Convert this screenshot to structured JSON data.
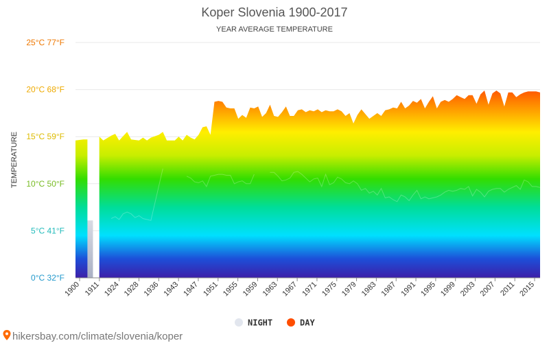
{
  "chart_data": {
    "type": "area",
    "title": "Koper Slovenia 1900-2017",
    "subtitle": "YEAR AVERAGE TEMPERATURE",
    "ylabel": "TEMPERATURE",
    "xlabel": "",
    "xlim": [
      1900,
      2017
    ],
    "ylim": [
      0,
      25
    ],
    "y_ticks": [
      {
        "value": 0,
        "label": "0°C 32°F",
        "color": "#2299cc"
      },
      {
        "value": 5,
        "label": "5°C 41°F",
        "color": "#22bbbb"
      },
      {
        "value": 10,
        "label": "10°C 50°F",
        "color": "#77bb22"
      },
      {
        "value": 15,
        "label": "15°C 59°F",
        "color": "#ddbb00"
      },
      {
        "value": 20,
        "label": "20°C 68°F",
        "color": "#eeaa00"
      },
      {
        "value": 25,
        "label": "25°C 77°F",
        "color": "#ee7700"
      }
    ],
    "x_ticks": [
      "1900",
      "1911",
      "1924",
      "1928",
      "1936",
      "1943",
      "1947",
      "1951",
      "1955",
      "1959",
      "1963",
      "1967",
      "1971",
      "1975",
      "1979",
      "1983",
      "1987",
      "1991",
      "1995",
      "1999",
      "2003",
      "2007",
      "2011",
      "2015"
    ],
    "legend": [
      {
        "label": "NIGHT",
        "color": "#e2e6ee"
      },
      {
        "label": "DAY",
        "color": "#ff4d00"
      }
    ],
    "legend_position": "bottom-center",
    "grid": true,
    "series": [
      {
        "name": "DAY",
        "points": [
          [
            1900,
            14.6
          ],
          [
            1902,
            14.7
          ],
          [
            1903,
            14.7
          ],
          [
            1905,
            0
          ],
          [
            1906,
            15.0
          ],
          [
            1907,
            14.6
          ],
          [
            1909,
            15.1
          ],
          [
            1910,
            15.3
          ],
          [
            1911,
            14.6
          ],
          [
            1913,
            15.5
          ],
          [
            1914,
            14.7
          ],
          [
            1916,
            14.6
          ],
          [
            1917,
            14.9
          ],
          [
            1918,
            14.6
          ],
          [
            1919,
            14.9
          ],
          [
            1921,
            15.2
          ],
          [
            1922,
            15.5
          ],
          [
            1923,
            14.6
          ],
          [
            1925,
            14.6
          ],
          [
            1926,
            15.0
          ],
          [
            1927,
            14.6
          ],
          [
            1928,
            15.2
          ],
          [
            1929,
            14.9
          ],
          [
            1930,
            14.7
          ],
          [
            1931,
            15.2
          ],
          [
            1932,
            16.0
          ],
          [
            1933,
            16.1
          ],
          [
            1934,
            15.2
          ],
          [
            1935,
            18.7
          ],
          [
            1936,
            18.8
          ],
          [
            1937,
            18.7
          ],
          [
            1938,
            18.1
          ],
          [
            1939,
            18.0
          ],
          [
            1940,
            18.0
          ],
          [
            1941,
            16.9
          ],
          [
            1942,
            17.3
          ],
          [
            1943,
            17.0
          ],
          [
            1944,
            18.1
          ],
          [
            1945,
            18.0
          ],
          [
            1946,
            18.2
          ],
          [
            1947,
            17.1
          ],
          [
            1948,
            17.5
          ],
          [
            1949,
            18.4
          ],
          [
            1950,
            17.2
          ],
          [
            1951,
            17.1
          ],
          [
            1952,
            17.6
          ],
          [
            1953,
            18.2
          ],
          [
            1954,
            17.2
          ],
          [
            1955,
            17.2
          ],
          [
            1956,
            17.8
          ],
          [
            1957,
            17.9
          ],
          [
            1958,
            17.6
          ],
          [
            1959,
            17.8
          ],
          [
            1960,
            17.7
          ],
          [
            1961,
            17.9
          ],
          [
            1962,
            17.6
          ],
          [
            1963,
            17.8
          ],
          [
            1964,
            17.7
          ],
          [
            1965,
            17.7
          ],
          [
            1966,
            17.9
          ],
          [
            1967,
            17.7
          ],
          [
            1968,
            17.2
          ],
          [
            1969,
            17.5
          ],
          [
            1970,
            16.4
          ],
          [
            1971,
            17.3
          ],
          [
            1972,
            17.9
          ],
          [
            1973,
            17.4
          ],
          [
            1974,
            16.9
          ],
          [
            1975,
            17.2
          ],
          [
            1976,
            17.5
          ],
          [
            1977,
            17.2
          ],
          [
            1978,
            17.8
          ],
          [
            1979,
            17.9
          ],
          [
            1980,
            18.1
          ],
          [
            1981,
            18.0
          ],
          [
            1982,
            18.7
          ],
          [
            1983,
            18.0
          ],
          [
            1984,
            18.3
          ],
          [
            1985,
            18.8
          ],
          [
            1986,
            18.6
          ],
          [
            1987,
            19.0
          ],
          [
            1988,
            18.0
          ],
          [
            1989,
            18.7
          ],
          [
            1990,
            19.3
          ],
          [
            1991,
            18.0
          ],
          [
            1992,
            18.7
          ],
          [
            1993,
            18.9
          ],
          [
            1994,
            18.7
          ],
          [
            1995,
            19.0
          ],
          [
            1996,
            19.4
          ],
          [
            1997,
            19.2
          ],
          [
            1998,
            19.0
          ],
          [
            1999,
            19.4
          ],
          [
            2000,
            19.4
          ],
          [
            2001,
            18.5
          ],
          [
            2002,
            19.5
          ],
          [
            2003,
            19.9
          ],
          [
            2004,
            18.4
          ],
          [
            2005,
            19.6
          ],
          [
            2006,
            19.9
          ],
          [
            2007,
            19.6
          ],
          [
            2008,
            18.2
          ],
          [
            2009,
            19.7
          ],
          [
            2010,
            19.7
          ],
          [
            2011,
            19.2
          ],
          [
            2012,
            19.5
          ],
          [
            2013,
            19.7
          ],
          [
            2014,
            19.8
          ],
          [
            2015,
            19.8
          ],
          [
            2016,
            19.8
          ],
          [
            2017,
            19.7
          ]
        ]
      },
      {
        "name": "NIGHT",
        "points": [
          [
            1903,
            6.0
          ],
          [
            1905,
            0
          ],
          [
            1909,
            6.3
          ],
          [
            1910,
            6.5
          ],
          [
            1911,
            6.2
          ],
          [
            1912,
            6.8
          ],
          [
            1913,
            7.0
          ],
          [
            1914,
            6.8
          ],
          [
            1915,
            6.4
          ],
          [
            1916,
            6.6
          ],
          [
            1917,
            6.3
          ],
          [
            1919,
            6.1
          ],
          [
            1922,
            11.6
          ],
          [
            1924,
            0
          ],
          [
            1928,
            10.8
          ],
          [
            1929,
            10.6
          ],
          [
            1930,
            10.2
          ],
          [
            1931,
            10.1
          ],
          [
            1932,
            10.3
          ],
          [
            1933,
            9.7
          ],
          [
            1934,
            10.8
          ],
          [
            1935,
            10.9
          ],
          [
            1936,
            11.0
          ],
          [
            1937,
            11.0
          ],
          [
            1938,
            10.9
          ],
          [
            1939,
            10.9
          ],
          [
            1940,
            10.0
          ],
          [
            1941,
            10.2
          ],
          [
            1942,
            10.3
          ],
          [
            1943,
            10.0
          ],
          [
            1944,
            10.0
          ],
          [
            1945,
            11.0
          ],
          [
            1946,
            0
          ],
          [
            1949,
            11.2
          ],
          [
            1950,
            11.2
          ],
          [
            1951,
            10.8
          ],
          [
            1952,
            10.3
          ],
          [
            1953,
            10.4
          ],
          [
            1954,
            10.6
          ],
          [
            1955,
            11.2
          ],
          [
            1956,
            11.3
          ],
          [
            1957,
            11.0
          ],
          [
            1958,
            10.6
          ],
          [
            1959,
            10.2
          ],
          [
            1960,
            10.5
          ],
          [
            1961,
            10.6
          ],
          [
            1962,
            9.7
          ],
          [
            1963,
            11.0
          ],
          [
            1964,
            9.9
          ],
          [
            1965,
            10.1
          ],
          [
            1966,
            10.7
          ],
          [
            1967,
            10.5
          ],
          [
            1968,
            10.1
          ],
          [
            1969,
            10.0
          ],
          [
            1970,
            10.3
          ],
          [
            1971,
            10.0
          ],
          [
            1972,
            9.3
          ],
          [
            1973,
            9.5
          ],
          [
            1974,
            9.0
          ],
          [
            1975,
            9.2
          ],
          [
            1976,
            8.8
          ],
          [
            1977,
            9.5
          ],
          [
            1978,
            8.5
          ],
          [
            1979,
            8.6
          ],
          [
            1980,
            8.3
          ],
          [
            1981,
            8.1
          ],
          [
            1982,
            8.8
          ],
          [
            1983,
            8.6
          ],
          [
            1984,
            8.2
          ],
          [
            1985,
            8.8
          ],
          [
            1986,
            9.3
          ],
          [
            1987,
            8.4
          ],
          [
            1988,
            8.6
          ],
          [
            1989,
            8.4
          ],
          [
            1990,
            8.5
          ],
          [
            1991,
            8.6
          ],
          [
            1992,
            8.8
          ],
          [
            1993,
            9.1
          ],
          [
            1994,
            9.3
          ],
          [
            1995,
            9.2
          ],
          [
            1996,
            9.3
          ],
          [
            1997,
            9.5
          ],
          [
            1998,
            9.4
          ],
          [
            1999,
            9.7
          ],
          [
            2000,
            8.7
          ],
          [
            2001,
            9.4
          ],
          [
            2002,
            9.1
          ],
          [
            2003,
            8.6
          ],
          [
            2004,
            9.2
          ],
          [
            2005,
            9.4
          ],
          [
            2006,
            9.5
          ],
          [
            2007,
            9.5
          ],
          [
            2008,
            9.1
          ],
          [
            2009,
            9.4
          ],
          [
            2010,
            9.6
          ],
          [
            2011,
            9.8
          ],
          [
            2012,
            9.4
          ],
          [
            2013,
            10.4
          ],
          [
            2014,
            10.2
          ],
          [
            2015,
            9.7
          ],
          [
            2016,
            9.7
          ],
          [
            2017,
            9.6
          ]
        ]
      }
    ]
  },
  "source_text": "hikersbay.com/climate/slovenia/koper"
}
